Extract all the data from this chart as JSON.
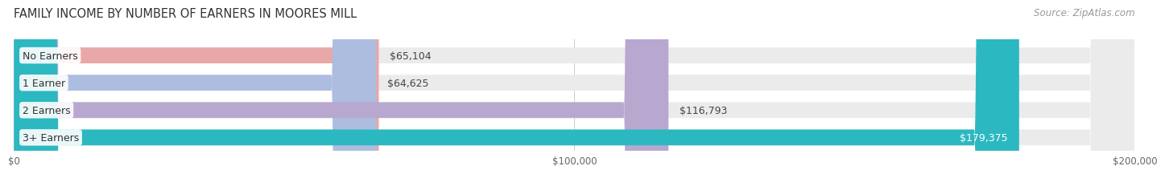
{
  "title": "FAMILY INCOME BY NUMBER OF EARNERS IN MOORES MILL",
  "source": "Source: ZipAtlas.com",
  "categories": [
    "No Earners",
    "1 Earner",
    "2 Earners",
    "3+ Earners"
  ],
  "values": [
    65104,
    64625,
    116793,
    179375
  ],
  "bar_colors": [
    "#e8a8a8",
    "#adbde0",
    "#b8a8d0",
    "#2cb8c0"
  ],
  "label_colors": [
    "#444444",
    "#444444",
    "#444444",
    "#ffffff"
  ],
  "max_value": 200000,
  "xticks": [
    0,
    100000,
    200000
  ],
  "xtick_labels": [
    "$0",
    "$100,000",
    "$200,000"
  ],
  "value_labels": [
    "$65,104",
    "$64,625",
    "$116,793",
    "$179,375"
  ],
  "background_color": "#ffffff",
  "bar_background_color": "#ebebeb",
  "title_fontsize": 10.5,
  "source_fontsize": 8.5,
  "bar_height": 0.58,
  "bar_gap": 1.0
}
